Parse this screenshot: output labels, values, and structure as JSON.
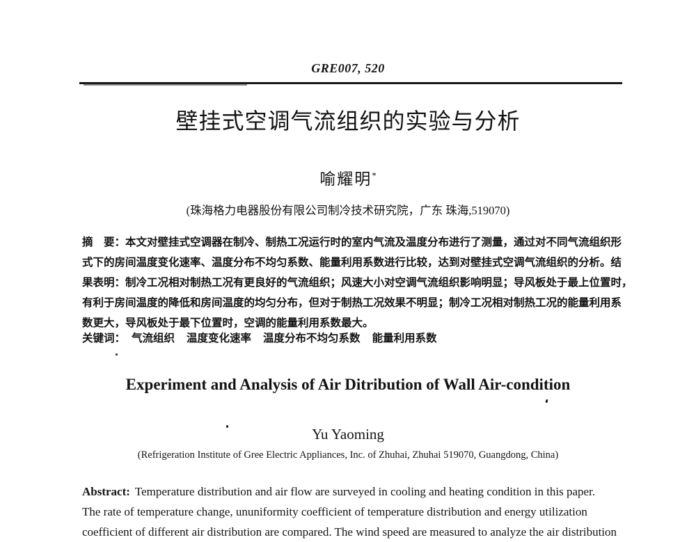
{
  "header": {
    "code": "GRE007, 520"
  },
  "cn": {
    "title": "壁挂式空调气流组织的实验与分析",
    "author": "喻耀明",
    "author_marker": "*",
    "affiliation": "(珠海格力电器股份有限公司制冷技术研究院，广东 珠海,519070)",
    "abstract": {
      "label": "摘　要：",
      "lines": [
        "本文对壁挂式空调器在制冷、制热工况运行时的室内气流及温度分布进行了测量，通过对不同气流组织形",
        "式下的房间温度变化速率、温度分布不均匀系数、能量利用系数进行比较，达到对壁挂式空调气流组织的分析。结",
        "果表明：制冷工况相对制热工况有更良好的气流组织；风速大小对空调气流组织影响明显；导风板处于最上位置时，",
        "有利于房间温度的降低和房间温度的均匀分布，但对于制热工况效果不明显；制冷工况相对制热工况的能量利用系",
        "数更大，导风板处于最下位置时，空调的能量利用系数最大。"
      ]
    },
    "keywords": {
      "label": "关键词：",
      "items": [
        "气流组织",
        "温度变化速率",
        "温度分布不均匀系数",
        "能量利用系数"
      ]
    }
  },
  "en": {
    "title": "Experiment and Analysis of Air Ditribution of Wall Air-condition",
    "author": "Yu Yaoming",
    "affiliation": "(Refrigeration Institute of Gree Electric Appliances, Inc. of Zhuhai, Zhuhai 519070, Guangdong, China)",
    "abstract": {
      "label": "Abstract:",
      "lines": [
        "Temperature distribution and air flow are surveyed in cooling and heating condition in this paper.",
        "The rate of temperature change, ununiformity coefficient of temperature distribution and energy utilization",
        "coefficient of different air distribution are compared. The wind speed are measured to analyze the air distribution"
      ]
    }
  }
}
